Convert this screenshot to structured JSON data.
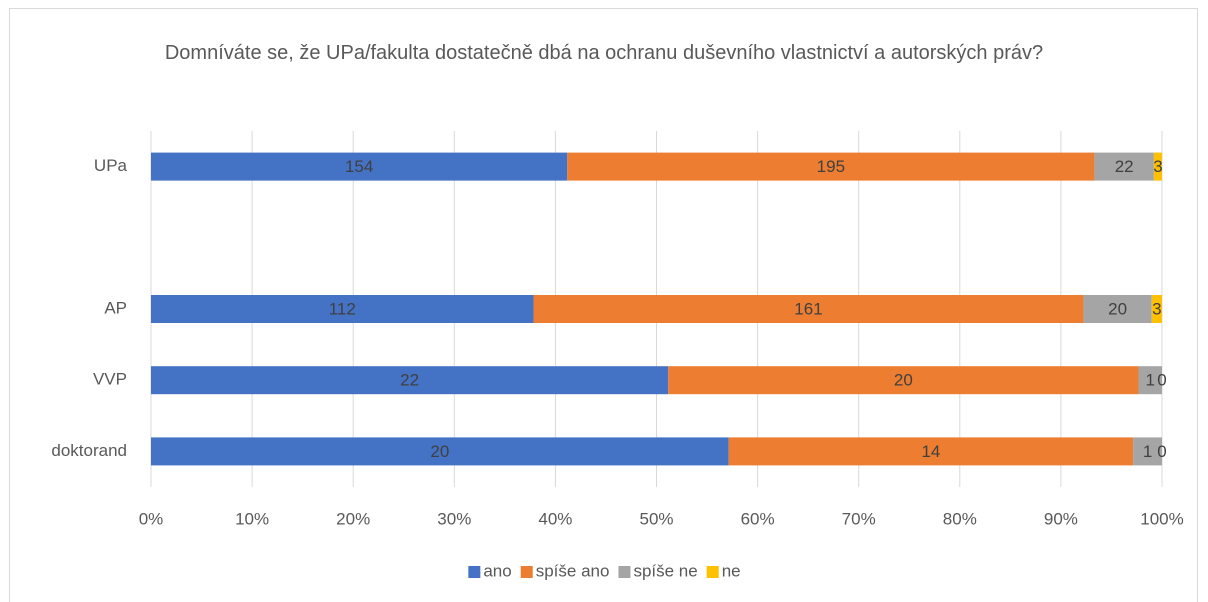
{
  "chart_data": {
    "type": "bar",
    "orientation": "horizontal",
    "stacked": "percent",
    "title": "Domníváte se, že UPa/fakulta dostatečně dbá na ochranu duševního vlastnictví a autorských práv?",
    "categories": [
      "UPa",
      null,
      "AP",
      "VVP",
      "doktorand"
    ],
    "series": [
      {
        "name": "ano",
        "color": "#4472c4",
        "values": [
          154,
          null,
          112,
          22,
          20
        ]
      },
      {
        "name": "spíše ano",
        "color": "#ed7d31",
        "values": [
          195,
          null,
          161,
          20,
          14
        ]
      },
      {
        "name": "spíše ne",
        "color": "#a5a5a5",
        "values": [
          22,
          null,
          20,
          1,
          1
        ]
      },
      {
        "name": "ne",
        "color": "#ffc000",
        "values": [
          3,
          null,
          3,
          0,
          0
        ]
      }
    ],
    "xlim": [
      0,
      100
    ],
    "xticks": [
      {
        "value": 0,
        "label": "0%"
      },
      {
        "value": 10,
        "label": "10%"
      },
      {
        "value": 20,
        "label": "20%"
      },
      {
        "value": 30,
        "label": "30%"
      },
      {
        "value": 40,
        "label": "40%"
      },
      {
        "value": 50,
        "label": "50%"
      },
      {
        "value": 60,
        "label": "60%"
      },
      {
        "value": 70,
        "label": "70%"
      },
      {
        "value": 80,
        "label": "80%"
      },
      {
        "value": 90,
        "label": "90%"
      },
      {
        "value": 100,
        "label": "100%"
      }
    ],
    "grid": true,
    "legend": "bottom"
  }
}
